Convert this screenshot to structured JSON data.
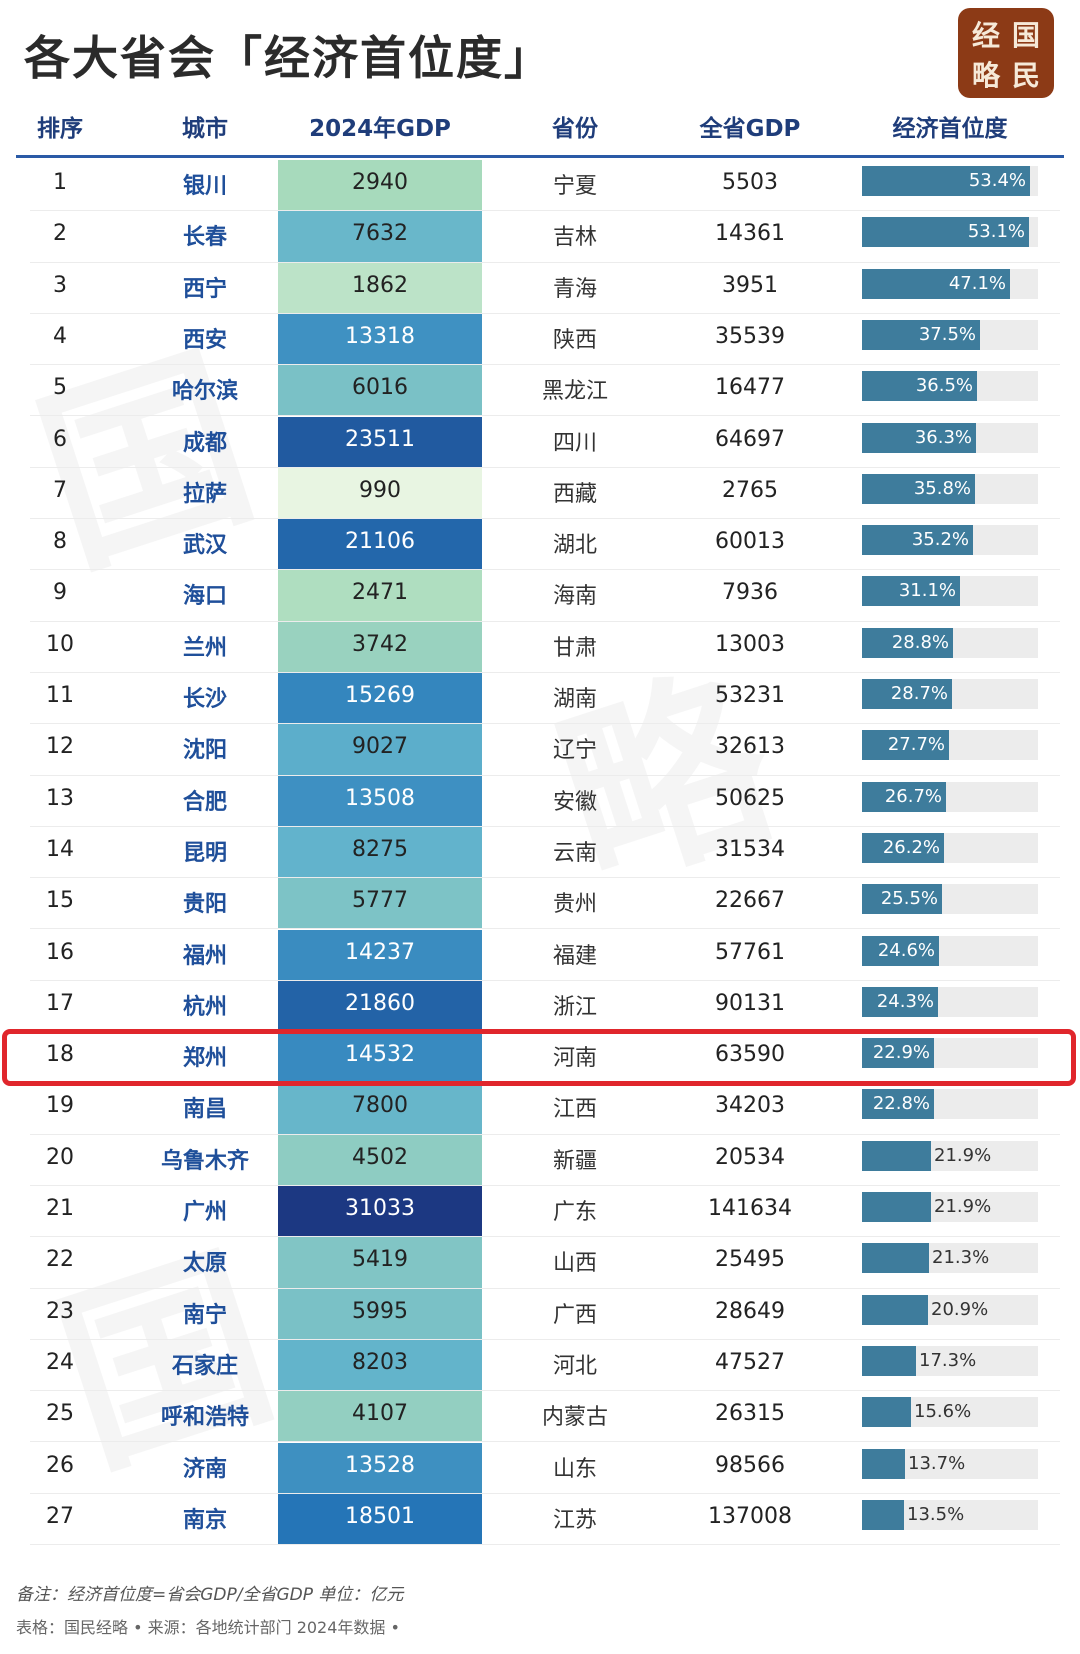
{
  "title": "各大省会「经济首位度」",
  "logo": {
    "chars": [
      "经",
      "国",
      "略",
      "民"
    ]
  },
  "columns": [
    "排序",
    "城市",
    "2024年GDP",
    "省份",
    "全省GDP",
    "经济首位度"
  ],
  "chart_data": {
    "type": "table",
    "title": "各大省会「经济首位度」",
    "columns": [
      "排序",
      "城市",
      "2024年GDP",
      "省份",
      "全省GDP",
      "经济首位度"
    ],
    "unit": "亿元",
    "highlighted_rank": 18,
    "rows": [
      {
        "rank": 1,
        "city": "银川",
        "gdp": 2940,
        "province": "宁夏",
        "province_gdp": 5503,
        "primacy": 53.4,
        "primacy_label": "53.4%"
      },
      {
        "rank": 2,
        "city": "长春",
        "gdp": 7632,
        "province": "吉林",
        "province_gdp": 14361,
        "primacy": 53.1,
        "primacy_label": "53.1%"
      },
      {
        "rank": 3,
        "city": "西宁",
        "gdp": 1862,
        "province": "青海",
        "province_gdp": 3951,
        "primacy": 47.1,
        "primacy_label": "47.1%"
      },
      {
        "rank": 4,
        "city": "西安",
        "gdp": 13318,
        "province": "陕西",
        "province_gdp": 35539,
        "primacy": 37.5,
        "primacy_label": "37.5%"
      },
      {
        "rank": 5,
        "city": "哈尔滨",
        "gdp": 6016,
        "province": "黑龙江",
        "province_gdp": 16477,
        "primacy": 36.5,
        "primacy_label": "36.5%"
      },
      {
        "rank": 6,
        "city": "成都",
        "gdp": 23511,
        "province": "四川",
        "province_gdp": 64697,
        "primacy": 36.3,
        "primacy_label": "36.3%"
      },
      {
        "rank": 7,
        "city": "拉萨",
        "gdp": 990,
        "province": "西藏",
        "province_gdp": 2765,
        "primacy": 35.8,
        "primacy_label": "35.8%"
      },
      {
        "rank": 8,
        "city": "武汉",
        "gdp": 21106,
        "province": "湖北",
        "province_gdp": 60013,
        "primacy": 35.2,
        "primacy_label": "35.2%"
      },
      {
        "rank": 9,
        "city": "海口",
        "gdp": 2471,
        "province": "海南",
        "province_gdp": 7936,
        "primacy": 31.1,
        "primacy_label": "31.1%"
      },
      {
        "rank": 10,
        "city": "兰州",
        "gdp": 3742,
        "province": "甘肃",
        "province_gdp": 13003,
        "primacy": 28.8,
        "primacy_label": "28.8%"
      },
      {
        "rank": 11,
        "city": "长沙",
        "gdp": 15269,
        "province": "湖南",
        "province_gdp": 53231,
        "primacy": 28.7,
        "primacy_label": "28.7%"
      },
      {
        "rank": 12,
        "city": "沈阳",
        "gdp": 9027,
        "province": "辽宁",
        "province_gdp": 32613,
        "primacy": 27.7,
        "primacy_label": "27.7%"
      },
      {
        "rank": 13,
        "city": "合肥",
        "gdp": 13508,
        "province": "安徽",
        "province_gdp": 50625,
        "primacy": 26.7,
        "primacy_label": "26.7%"
      },
      {
        "rank": 14,
        "city": "昆明",
        "gdp": 8275,
        "province": "云南",
        "province_gdp": 31534,
        "primacy": 26.2,
        "primacy_label": "26.2%"
      },
      {
        "rank": 15,
        "city": "贵阳",
        "gdp": 5777,
        "province": "贵州",
        "province_gdp": 22667,
        "primacy": 25.5,
        "primacy_label": "25.5%"
      },
      {
        "rank": 16,
        "city": "福州",
        "gdp": 14237,
        "province": "福建",
        "province_gdp": 57761,
        "primacy": 24.6,
        "primacy_label": "24.6%"
      },
      {
        "rank": 17,
        "city": "杭州",
        "gdp": 21860,
        "province": "浙江",
        "province_gdp": 90131,
        "primacy": 24.3,
        "primacy_label": "24.3%"
      },
      {
        "rank": 18,
        "city": "郑州",
        "gdp": 14532,
        "province": "河南",
        "province_gdp": 63590,
        "primacy": 22.9,
        "primacy_label": "22.9%"
      },
      {
        "rank": 19,
        "city": "南昌",
        "gdp": 7800,
        "province": "江西",
        "province_gdp": 34203,
        "primacy": 22.8,
        "primacy_label": "22.8%"
      },
      {
        "rank": 20,
        "city": "乌鲁木齐",
        "gdp": 4502,
        "province": "新疆",
        "province_gdp": 20534,
        "primacy": 21.9,
        "primacy_label": "21.9%"
      },
      {
        "rank": 21,
        "city": "广州",
        "gdp": 31033,
        "province": "广东",
        "province_gdp": 141634,
        "primacy": 21.9,
        "primacy_label": "21.9%"
      },
      {
        "rank": 22,
        "city": "太原",
        "gdp": 5419,
        "province": "山西",
        "province_gdp": 25495,
        "primacy": 21.3,
        "primacy_label": "21.3%"
      },
      {
        "rank": 23,
        "city": "南宁",
        "gdp": 5995,
        "province": "广西",
        "province_gdp": 28649,
        "primacy": 20.9,
        "primacy_label": "20.9%"
      },
      {
        "rank": 24,
        "city": "石家庄",
        "gdp": 8203,
        "province": "河北",
        "province_gdp": 47527,
        "primacy": 17.3,
        "primacy_label": "17.3%"
      },
      {
        "rank": 25,
        "city": "呼和浩特",
        "gdp": 4107,
        "province": "内蒙古",
        "province_gdp": 26315,
        "primacy": 15.6,
        "primacy_label": "15.6%"
      },
      {
        "rank": 26,
        "city": "济南",
        "gdp": 13528,
        "province": "山东",
        "province_gdp": 98566,
        "primacy": 13.7,
        "primacy_label": "13.7%"
      },
      {
        "rank": 27,
        "city": "南京",
        "gdp": 18501,
        "province": "江苏",
        "province_gdp": 137008,
        "primacy": 13.5,
        "primacy_label": "13.5%"
      }
    ]
  },
  "colors": {
    "bar": "#3e7c9c",
    "bar_track": "#ececec",
    "highlight": "#e0262c",
    "header": "#1f3d7a",
    "city": "#1f4f9a"
  },
  "footer": {
    "note": "备注：经济首位度=省会GDP/全省GDP 单位：亿元",
    "source": "表格：国民经略 • 来源：各地统计部门 2024年数据 •"
  }
}
